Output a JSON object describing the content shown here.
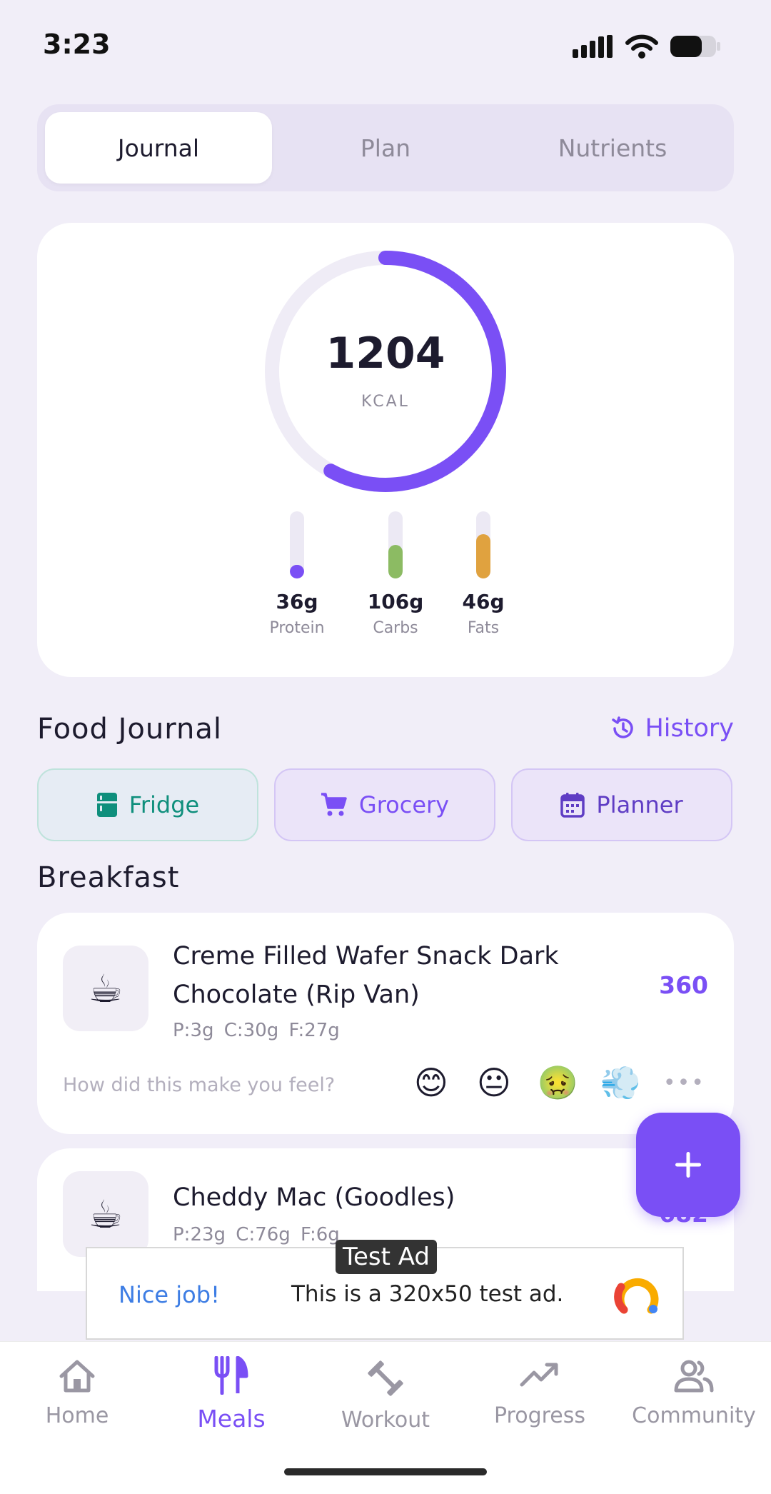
{
  "status_bar": {
    "time": "3:23"
  },
  "tabs": [
    {
      "label": "Journal",
      "active": true
    },
    {
      "label": "Plan",
      "active": false
    },
    {
      "label": "Nutrients",
      "active": false
    }
  ],
  "summary": {
    "kcal_value": "1204",
    "kcal_unit": "KCAL",
    "ring_progress": 0.58,
    "ring_color": "#7a4ff5",
    "macros": [
      {
        "value": "36g",
        "label": "Protein",
        "fill": 0.2,
        "color": "#7a4ff5"
      },
      {
        "value": "106g",
        "label": "Carbs",
        "fill": 0.5,
        "color": "#8cbb63"
      },
      {
        "value": "46g",
        "label": "Fats",
        "fill": 0.66,
        "color": "#e0a23f"
      }
    ]
  },
  "food_journal": {
    "title": "Food Journal",
    "history_label": "History",
    "quick_buttons": {
      "fridge": "Fridge",
      "grocery": "Grocery",
      "planner": "Planner"
    }
  },
  "meal": {
    "title": "Breakfast",
    "items": [
      {
        "icon": "coffee-icon",
        "name": "Creme Filled Wafer Snack Dark Chocolate (Rip Van)",
        "macros": "P:3g  C:30g  F:27g",
        "kcal": "360",
        "feel_prompt": "How did this make you feel?"
      },
      {
        "icon": "coffee-icon",
        "name": "Cheddy Mac (Goodles)",
        "macros": "P:23g  C:76g  F:6g",
        "kcal": "682"
      }
    ],
    "feel_emojis": [
      "😊",
      "😐",
      "🤢",
      "💨"
    ],
    "more": "•••"
  },
  "ad": {
    "tag": "Test Ad",
    "cta": "Nice job!",
    "text": "This is a 320x50 test ad."
  },
  "bottom_nav": [
    {
      "label": "Home",
      "icon": "home-icon",
      "active": false
    },
    {
      "label": "Meals",
      "icon": "utensils-icon",
      "active": true
    },
    {
      "label": "Workout",
      "icon": "dumbbell-icon",
      "active": false
    },
    {
      "label": "Progress",
      "icon": "trending-up-icon",
      "active": false
    },
    {
      "label": "Community",
      "icon": "people-icon",
      "active": false
    }
  ]
}
